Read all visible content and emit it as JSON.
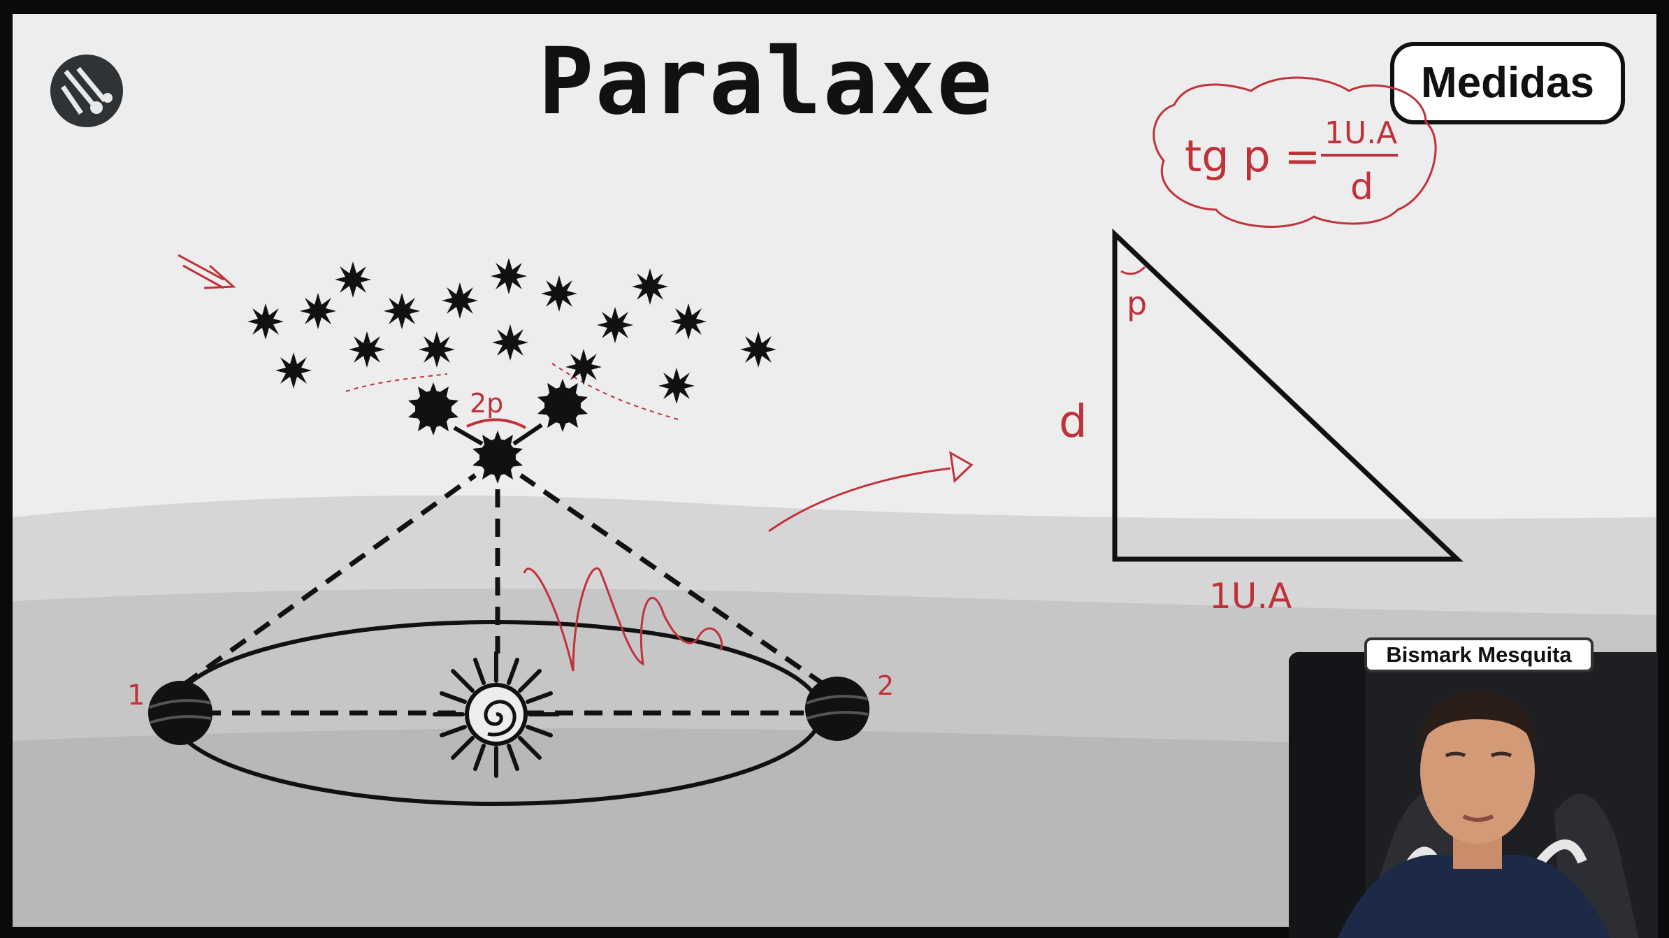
{
  "slide": {
    "title": "Paralaxe",
    "badge": "Medidas"
  },
  "annotations": {
    "formula_left": "tg p =",
    "formula_numerator": "1U.A",
    "formula_denominator": "d",
    "angle_label": "2p",
    "triangle_angle": "p",
    "triangle_side": "d",
    "triangle_base": "1U.A",
    "earth_position_1": "1",
    "earth_position_2": "2"
  },
  "presenter": {
    "name": "Bismark Mesquita"
  },
  "colors": {
    "board": "#ededed",
    "ink": "#111111",
    "annotation": "#c0323a",
    "hills_light": "#cfcfcf",
    "hills_dark": "#b9b9b9"
  },
  "icons": [
    "meteor-logo-icon",
    "sun-icon",
    "earth-icon",
    "star-icon"
  ]
}
